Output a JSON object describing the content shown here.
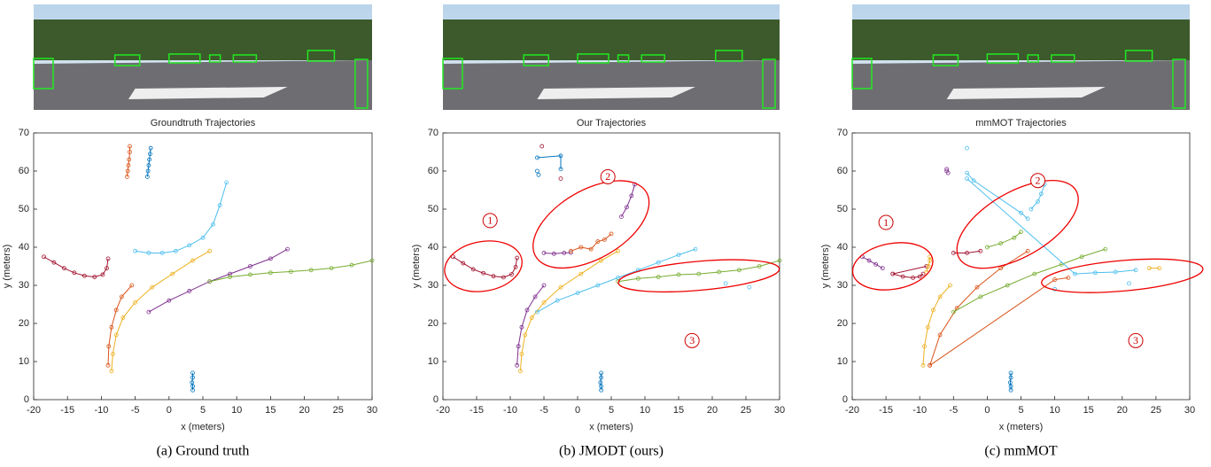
{
  "chart_data": [
    {
      "type": "line",
      "title": "Groundtruth Trajectories",
      "xlabel": "x (meters)",
      "ylabel": "y (meters)",
      "xlim": [
        -20,
        30
      ],
      "ylim": [
        0,
        70
      ],
      "xticks": [
        -20,
        -15,
        -10,
        -5,
        0,
        5,
        10,
        15,
        20,
        25,
        30
      ],
      "yticks": [
        0,
        10,
        20,
        30,
        40,
        50,
        60,
        70
      ],
      "series": [
        {
          "color": "#a2142f",
          "x": [
            -18.5,
            -17,
            -15.5,
            -14,
            -12.5,
            -11,
            -9.8,
            -9.2,
            -9
          ],
          "y": [
            37.5,
            36,
            34.5,
            33.3,
            32.5,
            32.2,
            32.8,
            34.5,
            37
          ]
        },
        {
          "color": "#d95319",
          "x": [
            -6.2,
            -6.1,
            -6,
            -5.9,
            -5.8,
            -5.8
          ],
          "y": [
            58.5,
            60,
            61.5,
            63,
            65,
            66.5
          ]
        },
        {
          "color": "#0072bd",
          "x": [
            -3.2,
            -3.1,
            -3,
            -2.9,
            -2.8,
            -2.7
          ],
          "y": [
            58.5,
            60,
            61.5,
            63,
            64.5,
            66
          ]
        },
        {
          "color": "#4dbeee",
          "x": [
            -5,
            -3,
            -1,
            1,
            3,
            5,
            6.5,
            7.5,
            8.5
          ],
          "y": [
            39,
            38.5,
            38.5,
            39,
            40.5,
            42.5,
            46,
            51,
            57
          ]
        },
        {
          "color": "#d95319",
          "x": [
            -9,
            -8.9,
            -8.5,
            -7.8,
            -7,
            -5.5
          ],
          "y": [
            9,
            14,
            19,
            23.5,
            27,
            30
          ]
        },
        {
          "color": "#edb120",
          "x": [
            -8.5,
            -8.3,
            -7.8,
            -6.8,
            -5,
            -2.5,
            0.5,
            3.5,
            6
          ],
          "y": [
            7.5,
            12,
            17,
            21.5,
            25.5,
            29.5,
            33,
            36.5,
            39
          ]
        },
        {
          "color": "#7e2f8e",
          "x": [
            -3,
            0,
            3,
            6,
            9,
            12,
            15,
            17.5
          ],
          "y": [
            23,
            26,
            28.5,
            31,
            33,
            35,
            37,
            39.5
          ]
        },
        {
          "color": "#77ac30",
          "x": [
            6,
            9,
            12,
            15,
            18,
            21,
            24,
            27,
            30
          ],
          "y": [
            31,
            32.2,
            32.8,
            33.3,
            33.6,
            34,
            34.5,
            35.3,
            36.5
          ]
        },
        {
          "color": "#0072bd",
          "x": [
            3.5,
            3.5,
            3.4,
            3.5,
            3.5
          ],
          "y": [
            2.5,
            3.5,
            4.5,
            5.8,
            7
          ]
        }
      ]
    },
    {
      "type": "line",
      "title": "Our Trajectories",
      "xlabel": "x (meters)",
      "ylabel": "y (meters)",
      "xlim": [
        -20,
        30
      ],
      "ylim": [
        0,
        70
      ],
      "xticks": [
        -20,
        -15,
        -10,
        -5,
        0,
        5,
        10,
        15,
        20,
        25,
        30
      ],
      "yticks": [
        0,
        10,
        20,
        30,
        40,
        50,
        60,
        70
      ],
      "annotations": [
        "1",
        "2",
        "3"
      ],
      "series": [
        {
          "color": "#a2142f",
          "x": [
            -18.5,
            -17,
            -15.5,
            -14,
            -12.5,
            -11,
            -9.8,
            -9.2,
            -9
          ],
          "y": [
            37.5,
            35.8,
            34.2,
            33.2,
            32.4,
            32.1,
            32.9,
            34.8,
            37.2
          ]
        },
        {
          "color": "#7e2f8e",
          "x": [
            -9,
            -8.8,
            -8.3,
            -7.5,
            -6.3,
            -5
          ],
          "y": [
            9,
            14,
            19,
            23.5,
            27,
            30
          ]
        },
        {
          "color": "#7e2f8e",
          "x": [
            -5,
            -3.5,
            -2,
            -1
          ],
          "y": [
            38.5,
            38.3,
            38.5,
            38.6
          ]
        },
        {
          "color": "#7e2f8e",
          "x": [
            6.5,
            7.3,
            8,
            8.5
          ],
          "y": [
            48,
            50.5,
            53.5,
            56.5
          ]
        },
        {
          "color": "#d95319",
          "x": [
            -1,
            0.5,
            2,
            3,
            4,
            5
          ],
          "y": [
            39,
            40,
            39.5,
            41.5,
            42,
            43.5
          ]
        },
        {
          "color": "#edb120",
          "x": [
            -8.5,
            -8.3,
            -7.8,
            -6.8,
            -5,
            -2.5,
            0.5,
            3.5,
            6
          ],
          "y": [
            7.5,
            12,
            17,
            21.5,
            25.5,
            29.5,
            33,
            36.5,
            39
          ]
        },
        {
          "color": "#4dbeee",
          "x": [
            -6,
            -3,
            0,
            3,
            6,
            9,
            12,
            15,
            17.5
          ],
          "y": [
            23,
            26,
            28,
            30,
            32,
            34,
            36,
            38,
            39.5
          ]
        },
        {
          "color": "#77ac30",
          "x": [
            6,
            9,
            12,
            15,
            18,
            21,
            24,
            27,
            30
          ],
          "y": [
            31,
            31.8,
            32.2,
            32.8,
            33,
            33.5,
            34,
            35,
            36.5
          ]
        },
        {
          "color": "#0072bd",
          "x": [
            3.5,
            3.5,
            3.4,
            3.5,
            3.5
          ],
          "y": [
            2.5,
            3.5,
            4.5,
            5.8,
            7
          ]
        },
        {
          "color": "#0072bd",
          "x": [
            -6,
            -2.5,
            -2.5
          ],
          "y": [
            63.5,
            64,
            60.5
          ]
        },
        {
          "color": "#a2142f",
          "x": [
            -5.3,
            -2.5
          ],
          "y": [
            66.5,
            58
          ],
          "line": false
        },
        {
          "color": "#0072bd",
          "x": [
            -6,
            -5.8
          ],
          "y": [
            60,
            59
          ],
          "line": false
        },
        {
          "color": "#4dbeee",
          "x": [
            22,
            25.5
          ],
          "y": [
            30.5,
            29.5
          ],
          "line": false
        }
      ]
    },
    {
      "type": "line",
      "title": "mmMOT Trajectories",
      "xlabel": "x (meters)",
      "ylabel": "y (meters)",
      "xlim": [
        -20,
        30
      ],
      "ylim": [
        0,
        70
      ],
      "xticks": [
        -20,
        -15,
        -10,
        -5,
        0,
        5,
        10,
        15,
        20,
        25,
        30
      ],
      "yticks": [
        0,
        10,
        20,
        30,
        40,
        50,
        60,
        70
      ],
      "annotations": [
        "1",
        "2",
        "3"
      ],
      "series": [
        {
          "color": "#7e2f8e",
          "x": [
            -18.5,
            -17.5,
            -16.5,
            -15.5
          ],
          "y": [
            37.5,
            36.5,
            35.5,
            34.5
          ]
        },
        {
          "color": "#a2142f",
          "x": [
            -14,
            -12.5,
            -11,
            -10,
            -9.5
          ],
          "y": [
            33,
            32.3,
            32,
            32.3,
            33
          ]
        },
        {
          "color": "#a2142f",
          "x": [
            -14,
            -9
          ],
          "y": [
            33,
            35
          ]
        },
        {
          "color": "#edb120",
          "x": [
            -9,
            -8.7,
            -8.5,
            -8.5
          ],
          "y": [
            33.5,
            35,
            36.5,
            37.5
          ]
        },
        {
          "color": "#a2142f",
          "x": [
            -5,
            -3,
            -1
          ],
          "y": [
            38.5,
            38.5,
            39
          ]
        },
        {
          "color": "#d95319",
          "x": [
            -8.5,
            -7,
            -4.5,
            -1.5,
            2,
            6
          ],
          "y": [
            9,
            17,
            24,
            29.5,
            34.5,
            39
          ]
        },
        {
          "color": "#d95319",
          "x": [
            -8.5,
            10,
            12
          ],
          "y": [
            9,
            31.5,
            32
          ]
        },
        {
          "color": "#edb120",
          "x": [
            -9.5,
            -9.3,
            -8.8,
            -8,
            -7,
            -5.5
          ],
          "y": [
            9,
            14,
            19,
            23.5,
            27,
            30
          ]
        },
        {
          "color": "#77ac30",
          "x": [
            -5,
            -1,
            3,
            7,
            11,
            14,
            17.5
          ],
          "y": [
            23,
            27,
            30,
            33,
            35.5,
            37.5,
            39.5
          ]
        },
        {
          "color": "#77ac30",
          "x": [
            0,
            2,
            4,
            5
          ],
          "y": [
            40,
            41,
            42.5,
            44
          ]
        },
        {
          "color": "#4dbeee",
          "x": [
            -3,
            -2,
            5,
            6
          ],
          "y": [
            59.5,
            57.5,
            49,
            47.5
          ]
        },
        {
          "color": "#4dbeee",
          "x": [
            6.5,
            7.5,
            8,
            8.5
          ],
          "y": [
            50,
            52,
            54,
            56.5
          ]
        },
        {
          "color": "#4dbeee",
          "x": [
            -3,
            13,
            16,
            19,
            22
          ],
          "y": [
            58,
            33,
            33.3,
            33.5,
            34
          ]
        },
        {
          "color": "#edb120",
          "x": [
            24,
            25.5
          ],
          "y": [
            34.5,
            34.5
          ]
        },
        {
          "color": "#7e2f8e",
          "x": [
            -6,
            -6,
            -5.8
          ],
          "y": [
            60.5,
            60,
            59.5
          ],
          "line": false
        },
        {
          "color": "#0072bd",
          "x": [
            3.5,
            3.5,
            3.4,
            3.5,
            3.5
          ],
          "y": [
            2.5,
            3.5,
            4.5,
            5.8,
            7
          ]
        },
        {
          "color": "#4dbeee",
          "x": [
            -3,
            10,
            21
          ],
          "y": [
            66,
            29,
            30.5
          ],
          "line": false
        }
      ]
    }
  ],
  "captions": [
    "(a) Ground truth",
    "(b) JMODT (ours)",
    "(c) mmMOT"
  ]
}
